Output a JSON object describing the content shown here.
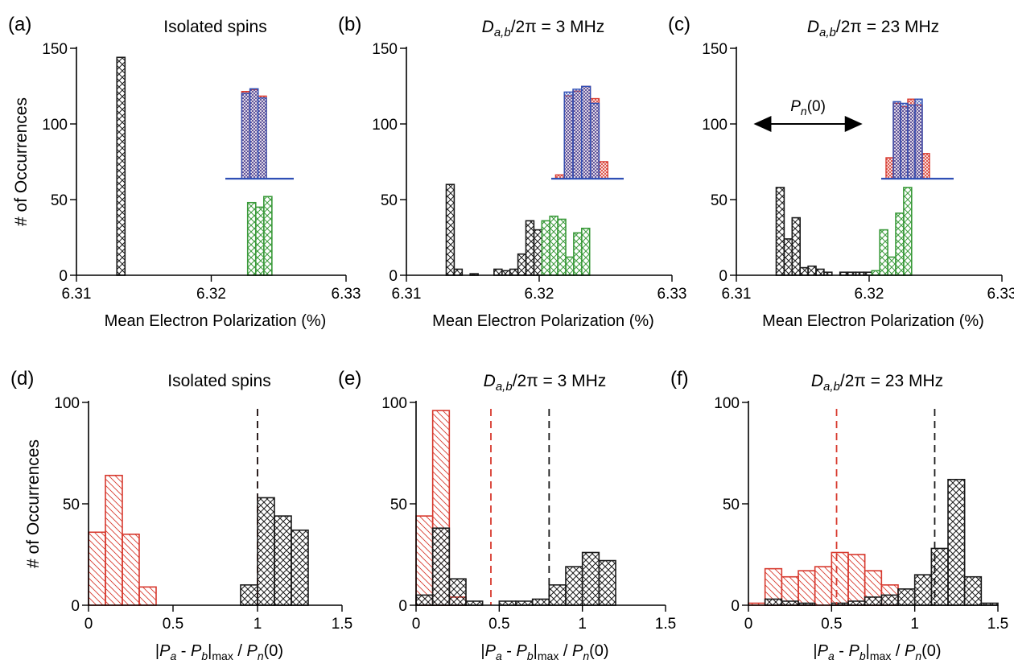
{
  "figure": {
    "colors": {
      "black": "#1a1a1a",
      "red": "#d7392e",
      "green": "#3a9a3a",
      "blue": "#2f4fb5",
      "axis": "#000000"
    }
  },
  "chart_data": [
    {
      "id": "a",
      "panel_label": "(a)",
      "type": "bar",
      "title": "Isolated spins",
      "title_style": "plain",
      "xlabel": "Mean Electron Polarization (%)",
      "ylabel": "# of Occurrences",
      "xlim": [
        6.31,
        6.33
      ],
      "ylim": [
        0,
        150
      ],
      "xticks": [
        6.31,
        6.32,
        6.33
      ],
      "xticklabels": [
        "6.31",
        "6.32",
        "6.33"
      ],
      "yticks": [
        0,
        50,
        100,
        150
      ],
      "yticklabels": [
        "0",
        "50",
        "100",
        "150"
      ],
      "binwidth": 0.0006,
      "series": [
        {
          "color": "black",
          "hatch": "cross",
          "bins": [
            [
              6.3133,
              144
            ]
          ]
        },
        {
          "color": "green",
          "hatch": "cross",
          "bins": [
            [
              6.323,
              48
            ],
            [
              6.3236,
              45
            ],
            [
              6.3242,
              52
            ]
          ]
        }
      ],
      "inset": {
        "xlim": [
          6.3215,
          6.3265
        ],
        "baseline_frac": 0.855,
        "series": [
          {
            "color": "red",
            "heights": [
              [
                6.323,
                0.95
              ],
              [
                6.3236,
                0.97
              ],
              [
                6.3242,
                0.9
              ]
            ]
          },
          {
            "color": "blue",
            "heights": [
              [
                6.323,
                0.93
              ],
              [
                6.3236,
                0.98
              ],
              [
                6.3242,
                0.88
              ]
            ]
          }
        ]
      }
    },
    {
      "id": "b",
      "panel_label": "(b)",
      "type": "bar",
      "title": "D_{a,b}/2π = 3 MHz",
      "title_style": "coupling",
      "title_parts": {
        "main": "D",
        "sub": "a,b",
        "rest": "/2π = 3 MHz"
      },
      "xlabel": "Mean Electron Polarization (%)",
      "xlim": [
        6.31,
        6.33
      ],
      "ylim": [
        0,
        150
      ],
      "xticks": [
        6.31,
        6.32,
        6.33
      ],
      "xticklabels": [
        "6.31",
        "6.32",
        "6.33"
      ],
      "yticks": [
        0,
        50,
        100,
        150
      ],
      "yticklabels": [
        "0",
        "50",
        "100",
        "150"
      ],
      "binwidth": 0.0006,
      "series": [
        {
          "color": "black",
          "hatch": "cross",
          "bins": [
            [
              6.3133,
              60
            ],
            [
              6.3139,
              4
            ],
            [
              6.3151,
              1
            ],
            [
              6.3169,
              4
            ],
            [
              6.3175,
              3
            ],
            [
              6.3181,
              4
            ],
            [
              6.3187,
              14
            ],
            [
              6.3193,
              36
            ],
            [
              6.3199,
              30
            ]
          ]
        },
        {
          "color": "green",
          "hatch": "cross",
          "bins": [
            [
              6.3205,
              36
            ],
            [
              6.3211,
              39
            ],
            [
              6.3217,
              37
            ],
            [
              6.3223,
              12
            ],
            [
              6.3229,
              28
            ],
            [
              6.3235,
              31
            ]
          ]
        }
      ],
      "inset": {
        "xlim": [
          6.3205,
          6.3255
        ],
        "baseline_frac": 0.855,
        "series": [
          {
            "color": "red",
            "heights": [
              [
                6.3211,
                0.04
              ],
              [
                6.3217,
                0.88
              ],
              [
                6.3223,
                0.93
              ],
              [
                6.3229,
                0.98
              ],
              [
                6.3235,
                0.85
              ],
              [
                6.3241,
                0.18
              ]
            ]
          },
          {
            "color": "blue",
            "heights": [
              [
                6.3217,
                0.92
              ],
              [
                6.3223,
                0.95
              ],
              [
                6.3229,
                0.98
              ],
              [
                6.3235,
                0.8
              ]
            ]
          }
        ]
      }
    },
    {
      "id": "c",
      "panel_label": "(c)",
      "type": "bar",
      "title": "D_{a,b}/2π = 23 MHz",
      "title_style": "coupling",
      "title_parts": {
        "main": "D",
        "sub": "a,b",
        "rest": "/2π = 23 MHz"
      },
      "xlabel": "Mean Electron Polarization (%)",
      "xlim": [
        6.31,
        6.33
      ],
      "ylim": [
        0,
        150
      ],
      "xticks": [
        6.31,
        6.32,
        6.33
      ],
      "xticklabels": [
        "6.31",
        "6.32",
        "6.33"
      ],
      "yticks": [
        0,
        50,
        100,
        150
      ],
      "yticklabels": [
        "0",
        "50",
        "100",
        "150"
      ],
      "binwidth": 0.0006,
      "series": [
        {
          "color": "black",
          "hatch": "cross",
          "bins": [
            [
              6.3133,
              58
            ],
            [
              6.3139,
              24
            ],
            [
              6.3145,
              38
            ],
            [
              6.3151,
              5
            ],
            [
              6.3157,
              6
            ],
            [
              6.3163,
              4
            ],
            [
              6.3169,
              2
            ],
            [
              6.3181,
              2
            ],
            [
              6.3187,
              2
            ],
            [
              6.3193,
              2
            ],
            [
              6.3199,
              2
            ]
          ]
        },
        {
          "color": "green",
          "hatch": "cross",
          "bins": [
            [
              6.3205,
              3
            ],
            [
              6.3211,
              30
            ],
            [
              6.3217,
              12
            ],
            [
              6.3223,
              41
            ],
            [
              6.3229,
              58
            ]
          ]
        }
      ],
      "annotation": {
        "text": "P_n(0)",
        "main": "P",
        "sub": "n",
        "rest": "(0)",
        "x_from": 6.3113,
        "x_to": 6.3195,
        "y": 100
      },
      "inset": {
        "xlim": [
          6.3198,
          6.3258
        ],
        "baseline_frac": 0.855,
        "series": [
          {
            "color": "red",
            "heights": [
              [
                6.3205,
                0.25
              ],
              [
                6.3211,
                0.9
              ],
              [
                6.3217,
                0.86
              ],
              [
                6.3223,
                0.95
              ],
              [
                6.3229,
                0.88
              ],
              [
                6.3235,
                0.3
              ]
            ]
          },
          {
            "color": "blue",
            "heights": [
              [
                6.3211,
                0.92
              ],
              [
                6.3217,
                0.9
              ],
              [
                6.3223,
                0.88
              ],
              [
                6.3229,
                0.95
              ]
            ]
          }
        ]
      }
    },
    {
      "id": "d",
      "panel_label": "(d)",
      "type": "bar",
      "title": "Isolated spins",
      "title_style": "plain",
      "xlabel": "|P_a - P_b|_max / P_n(0)",
      "ylabel": "# of Occurrences",
      "xlim": [
        0,
        1.5
      ],
      "ylim": [
        0,
        100
      ],
      "xticks": [
        0,
        0.5,
        1,
        1.5
      ],
      "xticklabels": [
        "0",
        "0.5",
        "1",
        "1.5"
      ],
      "yticks": [
        0,
        50,
        100
      ],
      "yticklabels": [
        "0",
        "50",
        "100"
      ],
      "binwidth": 0.1,
      "series": [
        {
          "color": "red",
          "hatch": "diag",
          "bins": [
            [
              0.05,
              36
            ],
            [
              0.15,
              64
            ],
            [
              0.25,
              35
            ],
            [
              0.35,
              9
            ]
          ]
        },
        {
          "color": "black",
          "hatch": "cross",
          "bins": [
            [
              0.95,
              10
            ],
            [
              1.05,
              53
            ],
            [
              1.15,
              44
            ],
            [
              1.25,
              37
            ]
          ]
        }
      ],
      "vlines": [
        {
          "color": "red",
          "x": 1.0
        },
        {
          "color": "black",
          "x": 1.0
        }
      ]
    },
    {
      "id": "e",
      "panel_label": "(e)",
      "type": "bar",
      "title": "D_{a,b}/2π = 3 MHz",
      "title_style": "coupling",
      "title_parts": {
        "main": "D",
        "sub": "a,b",
        "rest": "/2π = 3 MHz"
      },
      "xlabel": "|P_a - P_b|_max / P_n(0)",
      "xlim": [
        0,
        1.5
      ],
      "ylim": [
        0,
        100
      ],
      "xticks": [
        0,
        0.5,
        1,
        1.5
      ],
      "xticklabels": [
        "0",
        "0.5",
        "1",
        "1.5"
      ],
      "yticks": [
        0,
        50,
        100
      ],
      "yticklabels": [
        "0",
        "50",
        "100"
      ],
      "binwidth": 0.1,
      "series": [
        {
          "color": "red",
          "hatch": "diag",
          "bins": [
            [
              0.05,
              44
            ],
            [
              0.15,
              96
            ],
            [
              0.25,
              4
            ]
          ]
        },
        {
          "color": "black",
          "hatch": "cross",
          "bins": [
            [
              0.05,
              5
            ],
            [
              0.15,
              38
            ],
            [
              0.25,
              13
            ],
            [
              0.35,
              2
            ],
            [
              0.55,
              2
            ],
            [
              0.65,
              2
            ],
            [
              0.75,
              3
            ],
            [
              0.85,
              10
            ],
            [
              0.95,
              19
            ],
            [
              1.05,
              26
            ],
            [
              1.15,
              22
            ]
          ]
        }
      ],
      "vlines": [
        {
          "color": "red",
          "x": 0.45
        },
        {
          "color": "black",
          "x": 0.8
        }
      ]
    },
    {
      "id": "f",
      "panel_label": "(f)",
      "type": "bar",
      "title": "D_{a,b}/2π = 23 MHz",
      "title_style": "coupling",
      "title_parts": {
        "main": "D",
        "sub": "a,b",
        "rest": "/2π = 23 MHz"
      },
      "xlabel": "|P_a - P_b|_max / P_n(0)",
      "xlim": [
        0,
        1.5
      ],
      "ylim": [
        0,
        100
      ],
      "xticks": [
        0,
        0.5,
        1,
        1.5
      ],
      "xticklabels": [
        "0",
        "0.5",
        "1",
        "1.5"
      ],
      "yticks": [
        0,
        50,
        100
      ],
      "yticklabels": [
        "0",
        "50",
        "100"
      ],
      "binwidth": 0.1,
      "series": [
        {
          "color": "red",
          "hatch": "diag",
          "bins": [
            [
              0.05,
              1
            ],
            [
              0.15,
              18
            ],
            [
              0.25,
              14
            ],
            [
              0.35,
              17
            ],
            [
              0.45,
              19
            ],
            [
              0.55,
              26
            ],
            [
              0.65,
              25
            ],
            [
              0.75,
              17
            ],
            [
              0.85,
              10
            ]
          ]
        },
        {
          "color": "black",
          "hatch": "cross",
          "bins": [
            [
              0.15,
              3
            ],
            [
              0.25,
              2
            ],
            [
              0.35,
              1
            ],
            [
              0.55,
              1
            ],
            [
              0.65,
              2
            ],
            [
              0.75,
              4
            ],
            [
              0.85,
              5
            ],
            [
              0.95,
              8
            ],
            [
              1.05,
              15
            ],
            [
              1.15,
              28
            ],
            [
              1.25,
              62
            ],
            [
              1.35,
              14
            ],
            [
              1.45,
              1
            ]
          ]
        }
      ],
      "vlines": [
        {
          "color": "red",
          "x": 0.53
        },
        {
          "color": "black",
          "x": 1.12
        }
      ]
    }
  ]
}
